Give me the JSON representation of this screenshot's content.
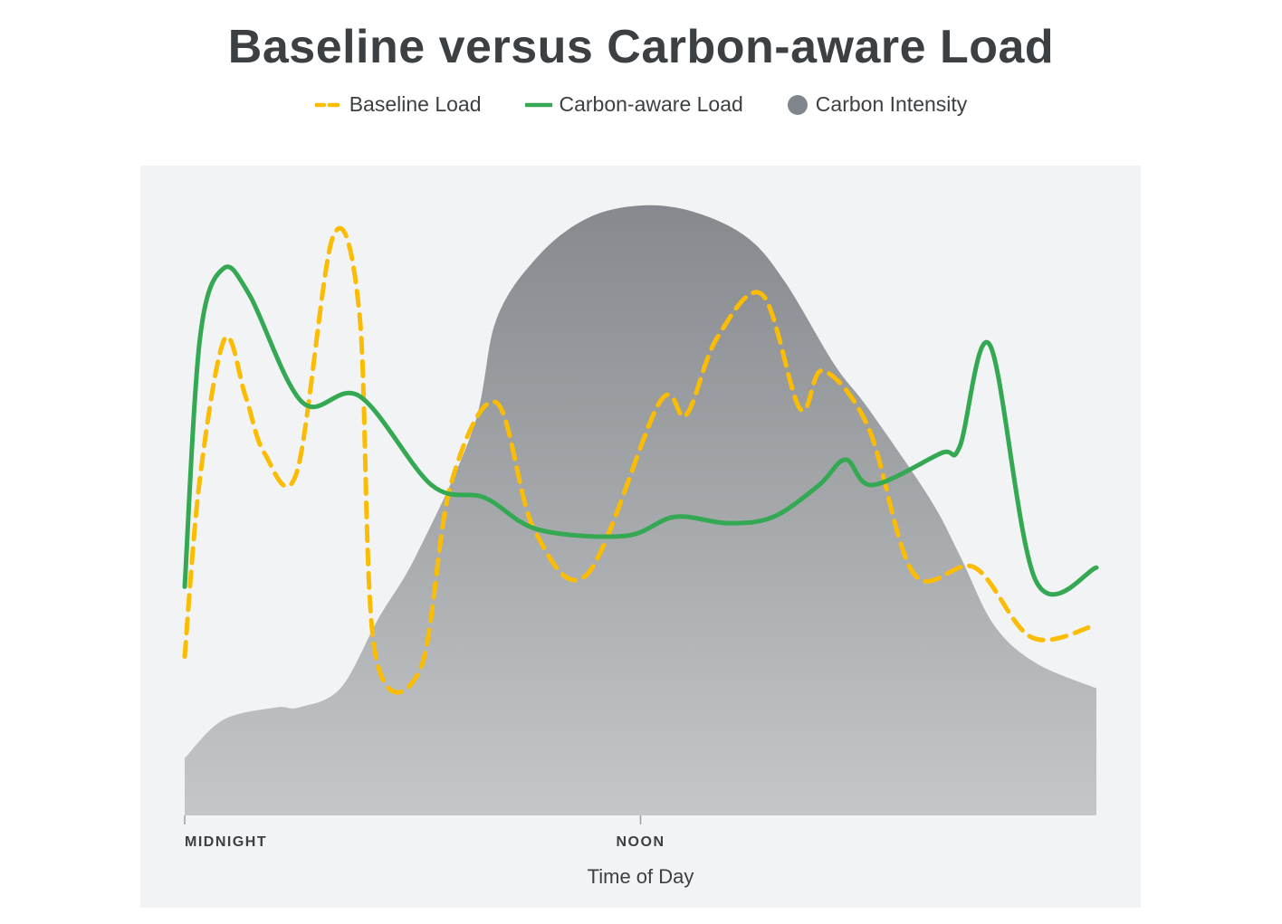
{
  "chart_data": {
    "type": "line",
    "title": "Baseline versus Carbon-aware Load",
    "xlabel": "Time of Day",
    "ylabel": "",
    "xlim": [
      0,
      24
    ],
    "ylim": [
      0,
      100
    ],
    "x_ticks": [
      {
        "x": 0,
        "label": "MIDNIGHT"
      },
      {
        "x": 12,
        "label": "NOON"
      }
    ],
    "grid": false,
    "legend_position": "top-center",
    "series": [
      {
        "name": "Baseline Load",
        "style": "dashed",
        "color": "#fbbc04",
        "points": [
          [
            0,
            25
          ],
          [
            0.4,
            53
          ],
          [
            1.05,
            75
          ],
          [
            1.6,
            66
          ],
          [
            2.1,
            57
          ],
          [
            2.95,
            54
          ],
          [
            3.9,
            91
          ],
          [
            4.6,
            79
          ],
          [
            5.0,
            26
          ],
          [
            6.2,
            23
          ],
          [
            7.0,
            52
          ],
          [
            8.2,
            65
          ],
          [
            9.2,
            45
          ],
          [
            10.6,
            38
          ],
          [
            12.5,
            65
          ],
          [
            13.2,
            63
          ],
          [
            14.0,
            75
          ],
          [
            15.2,
            82
          ],
          [
            16.2,
            64
          ],
          [
            16.8,
            70
          ],
          [
            18.0,
            61
          ],
          [
            19.2,
            38
          ],
          [
            20.8,
            39
          ],
          [
            22.3,
            28
          ],
          [
            24.0,
            30
          ]
        ]
      },
      {
        "name": "Carbon-aware Load",
        "style": "solid",
        "color": "#34a853",
        "points": [
          [
            0,
            36
          ],
          [
            0.4,
            75
          ],
          [
            1.0,
            86
          ],
          [
            1.7,
            82
          ],
          [
            3.1,
            65
          ],
          [
            4.6,
            66
          ],
          [
            6.5,
            52
          ],
          [
            7.9,
            50
          ],
          [
            9.3,
            45
          ],
          [
            11.6,
            44
          ],
          [
            12.9,
            47
          ],
          [
            14.3,
            46
          ],
          [
            15.5,
            47
          ],
          [
            16.7,
            52
          ],
          [
            17.4,
            56
          ],
          [
            18.1,
            52
          ],
          [
            19.9,
            57
          ],
          [
            20.4,
            58
          ],
          [
            21.2,
            74
          ],
          [
            22.4,
            37
          ],
          [
            24.0,
            39
          ]
        ]
      },
      {
        "name": "Carbon Intensity",
        "style": "area",
        "color": "#9aa0a6",
        "points": [
          [
            0,
            9
          ],
          [
            1.0,
            15
          ],
          [
            2.4,
            17
          ],
          [
            3.0,
            17
          ],
          [
            4.1,
            20
          ],
          [
            5.1,
            31
          ],
          [
            6.1,
            41
          ],
          [
            7.6,
            61
          ],
          [
            8.2,
            78
          ],
          [
            9.3,
            88
          ],
          [
            10.6,
            94
          ],
          [
            12.0,
            96
          ],
          [
            13.4,
            95
          ],
          [
            14.8,
            91
          ],
          [
            15.8,
            84
          ],
          [
            17.1,
            71
          ],
          [
            18.0,
            64
          ],
          [
            19.6,
            50
          ],
          [
            20.4,
            41
          ],
          [
            21.3,
            30
          ],
          [
            22.4,
            24
          ],
          [
            24.0,
            20
          ]
        ]
      }
    ]
  },
  "colors": {
    "baseline": "#fbbc04",
    "carbon_aware": "#34a853",
    "intensity_top": "#86898d",
    "intensity_bottom": "#c4c7c9",
    "panel": "#f1f3f4",
    "text": "#3c4043"
  }
}
